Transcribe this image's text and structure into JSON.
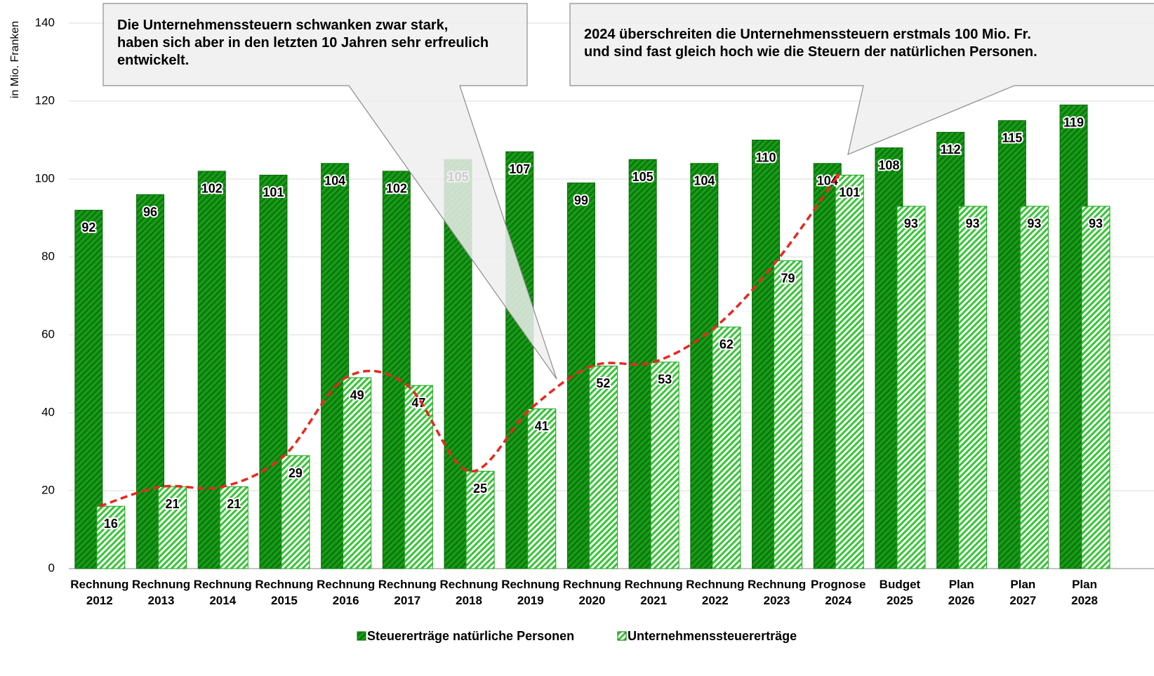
{
  "chart_data": {
    "type": "bar",
    "y_axis_label": "in Mio. Franken",
    "categories": [
      [
        "Rechnung",
        "2012"
      ],
      [
        "Rechnung",
        "2013"
      ],
      [
        "Rechnung",
        "2014"
      ],
      [
        "Rechnung",
        "2015"
      ],
      [
        "Rechnung",
        "2016"
      ],
      [
        "Rechnung",
        "2017"
      ],
      [
        "Rechnung",
        "2018"
      ],
      [
        "Rechnung",
        "2019"
      ],
      [
        "Rechnung",
        "2020"
      ],
      [
        "Rechnung",
        "2021"
      ],
      [
        "Rechnung",
        "2022"
      ],
      [
        "Rechnung",
        "2023"
      ],
      [
        "Prognose",
        "2024"
      ],
      [
        "Budget",
        "2025"
      ],
      [
        "Plan",
        "2026"
      ],
      [
        "Plan",
        "2027"
      ],
      [
        "Plan",
        "2028"
      ]
    ],
    "series": [
      {
        "name": "Steuererträge natürliche Personen",
        "color": "#1a9e1a",
        "values": [
          92,
          96,
          102,
          101,
          104,
          102,
          105,
          107,
          99,
          105,
          104,
          110,
          104,
          108,
          112,
          115,
          119
        ]
      },
      {
        "name": "Unternehmenssteuererträge",
        "color": "#33c733",
        "values": [
          16,
          21,
          21,
          29,
          49,
          47,
          25,
          41,
          52,
          53,
          62,
          79,
          101,
          93,
          93,
          93,
          93
        ]
      }
    ],
    "ylim": [
      0,
      140
    ],
    "yticks": [
      0,
      20,
      40,
      60,
      80,
      100,
      120,
      140
    ],
    "grid": true,
    "trend_color": "#e8281e",
    "annotations": [
      [
        "Die Unternehmenssteuern schwanken zwar stark,",
        "haben sich aber in den letzten 10 Jahren sehr erfreulich",
        "entwickelt."
      ],
      [
        "2024 überschreiten die Unternehmenssteuern erstmals 100 Mio. Fr.",
        "und sind fast gleich hoch wie die Steuern der natürlichen Personen."
      ]
    ]
  }
}
